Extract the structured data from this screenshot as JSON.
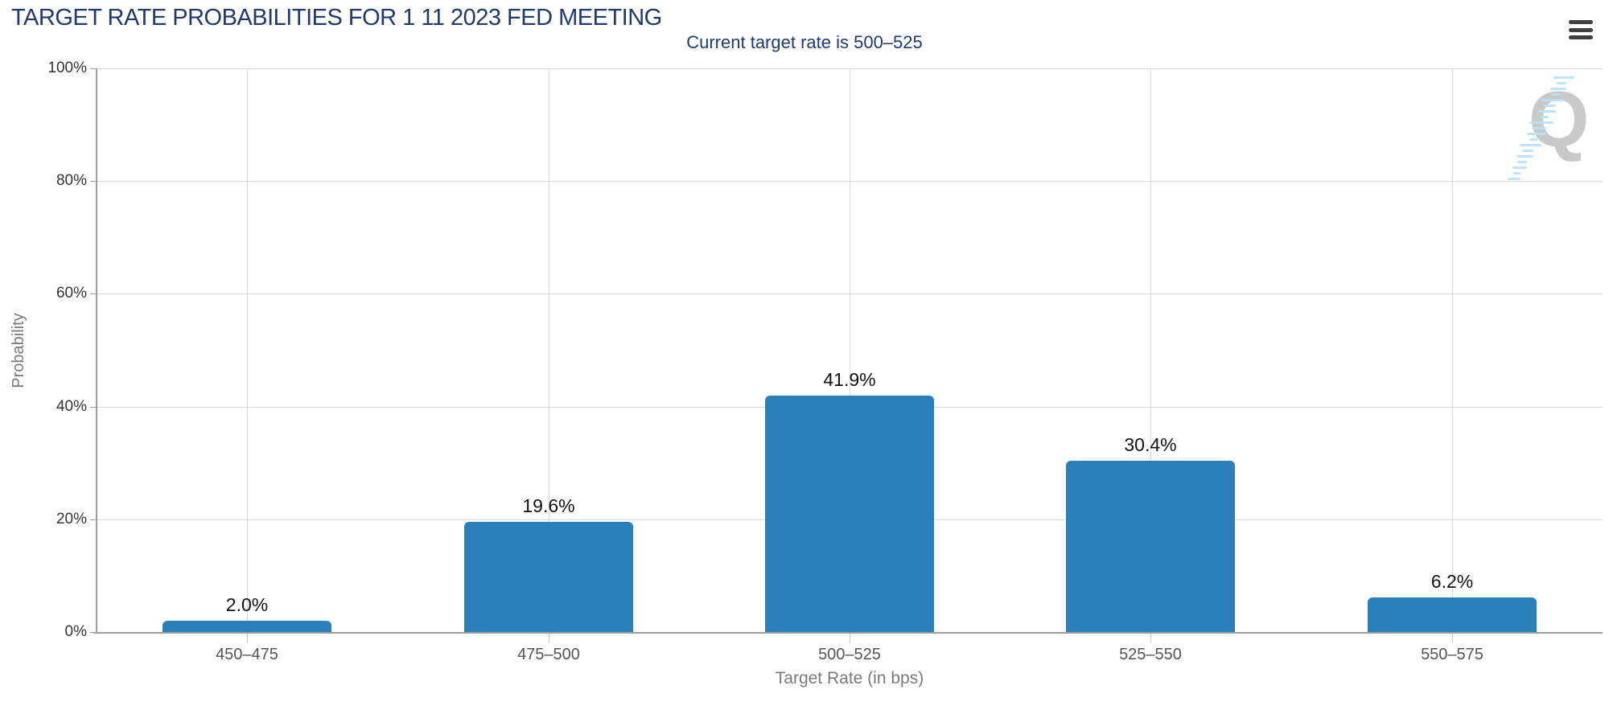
{
  "header": {
    "title": "TARGET RATE PROBABILITIES FOR 1 11 2023 FED MEETING"
  },
  "chart_data": {
    "type": "bar",
    "title": "Current target rate is 500–525",
    "categories": [
      "450–475",
      "475–500",
      "500–525",
      "525–550",
      "550–575"
    ],
    "values": [
      2.0,
      19.6,
      41.9,
      30.4,
      6.2
    ],
    "value_labels": [
      "2.0%",
      "19.6%",
      "41.9%",
      "30.4%",
      "6.2%"
    ],
    "xlabel": "Target Rate (in bps)",
    "ylabel": "Probability",
    "ylim": [
      0,
      100
    ],
    "yticks": [
      0,
      20,
      40,
      60,
      80,
      100
    ],
    "ytick_labels": [
      "0%",
      "20%",
      "40%",
      "60%",
      "80%",
      "100%"
    ],
    "grid": true,
    "legend": false,
    "bar_color": "#2b7fba"
  },
  "watermark": {
    "letter": "Q"
  },
  "colors": {
    "title_navy": "#1e3a6e",
    "bar_blue": "#2b7fba",
    "gridline": "#d9d9d9",
    "axis_gray": "#9e9e9e",
    "value_label": "#111111",
    "axis_title_gray": "#7a7a7a",
    "watermark_gray": "#c9c9c9",
    "watermark_blue": "#b7e1f8"
  }
}
